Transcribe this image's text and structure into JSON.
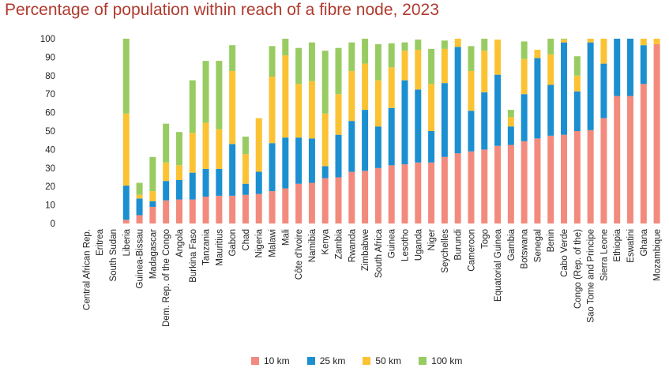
{
  "chart_data": {
    "type": "bar",
    "stacked": true,
    "title": "Percentage of population within reach of a fibre node, 2023",
    "ylim": [
      0,
      100
    ],
    "yticks": [
      0,
      10,
      20,
      30,
      40,
      50,
      60,
      70,
      80,
      90,
      100
    ],
    "grid": false,
    "legend_position": "bottom",
    "categories": [
      "Central African Rep.",
      "Eritrea",
      "South Sudan",
      "Liberia",
      "Guinea-Bissau",
      "Madagascar",
      "Dem. Rep. of the Congo",
      "Angola",
      "Burkina Faso",
      "Tanzania",
      "Mauritius",
      "Gabon",
      "Chad",
      "Nigeria",
      "Malawi",
      "Mali",
      "Côte d'Ivoire",
      "Namibia",
      "Kenya",
      "Zambia",
      "Rwanda",
      "Zimbabwe",
      "South Africa",
      "Guinea",
      "Lesotho",
      "Uganda",
      "Niger",
      "Seychelles",
      "Burundi",
      "Cameroon",
      "Togo",
      "Equatorial Guinea",
      "Gambia",
      "Botswana",
      "Senegal",
      "Benin",
      "Cabo Verde",
      "Congo (Rep. of the)",
      "Sao Tome and Principe",
      "Sierra Leone",
      "Ethiopia",
      "Eswatini",
      "Ghana",
      "Mozambique"
    ],
    "series": [
      {
        "name": "10 km",
        "color": "#f28b7d",
        "values": [
          0,
          0,
          0,
          2,
          4.5,
          9,
          12.5,
          13,
          13,
          14.5,
          15,
          15,
          15.5,
          16,
          17.5,
          19,
          21.5,
          22,
          24.5,
          25,
          28,
          28.5,
          30,
          31.5,
          32,
          33,
          33,
          36,
          38,
          39,
          40,
          42,
          42.5,
          44.5,
          46,
          47.5,
          48,
          50,
          50.5,
          57,
          69,
          69,
          75.5,
          97
        ]
      },
      {
        "name": "25 km",
        "color": "#1b8fd0",
        "values": [
          0,
          0,
          0,
          18.5,
          9,
          3,
          10.5,
          10.5,
          14.5,
          15,
          14.5,
          28,
          6,
          12,
          26,
          27.5,
          25,
          24,
          6.5,
          23,
          27.5,
          33,
          22.5,
          31,
          45.5,
          39.5,
          17,
          40,
          57.5,
          22,
          31,
          38.5,
          10,
          25.5,
          43.5,
          27.5,
          50,
          21.5,
          47.5,
          29.5,
          31,
          31,
          21,
          0
        ]
      },
      {
        "name": "50 km",
        "color": "#fbc334",
        "values": [
          0,
          0,
          0,
          39,
          2,
          5.5,
          10,
          8,
          21.5,
          25,
          21.5,
          39.5,
          16,
          29,
          36,
          44.5,
          29,
          31,
          28.5,
          22,
          27,
          25,
          25,
          22,
          16,
          21.5,
          25.5,
          18.5,
          4.5,
          21.5,
          22.5,
          19,
          5,
          19,
          4.5,
          16.5,
          1.5,
          8.5,
          2,
          13.5,
          0,
          0,
          3.5,
          3
        ]
      },
      {
        "name": "100 km",
        "color": "#98cc62",
        "values": [
          0,
          0,
          0,
          40.5,
          6.5,
          18.5,
          21,
          18,
          28.5,
          33.5,
          37,
          14,
          9.5,
          0,
          16.5,
          9,
          19.5,
          21,
          34,
          25,
          15.5,
          13.5,
          19.5,
          13,
          4.5,
          5.5,
          19,
          4.5,
          0,
          13.5,
          6.5,
          0,
          4,
          9.5,
          0,
          8.5,
          0.5,
          10.5,
          0,
          0,
          0,
          0,
          0,
          0
        ]
      }
    ]
  }
}
